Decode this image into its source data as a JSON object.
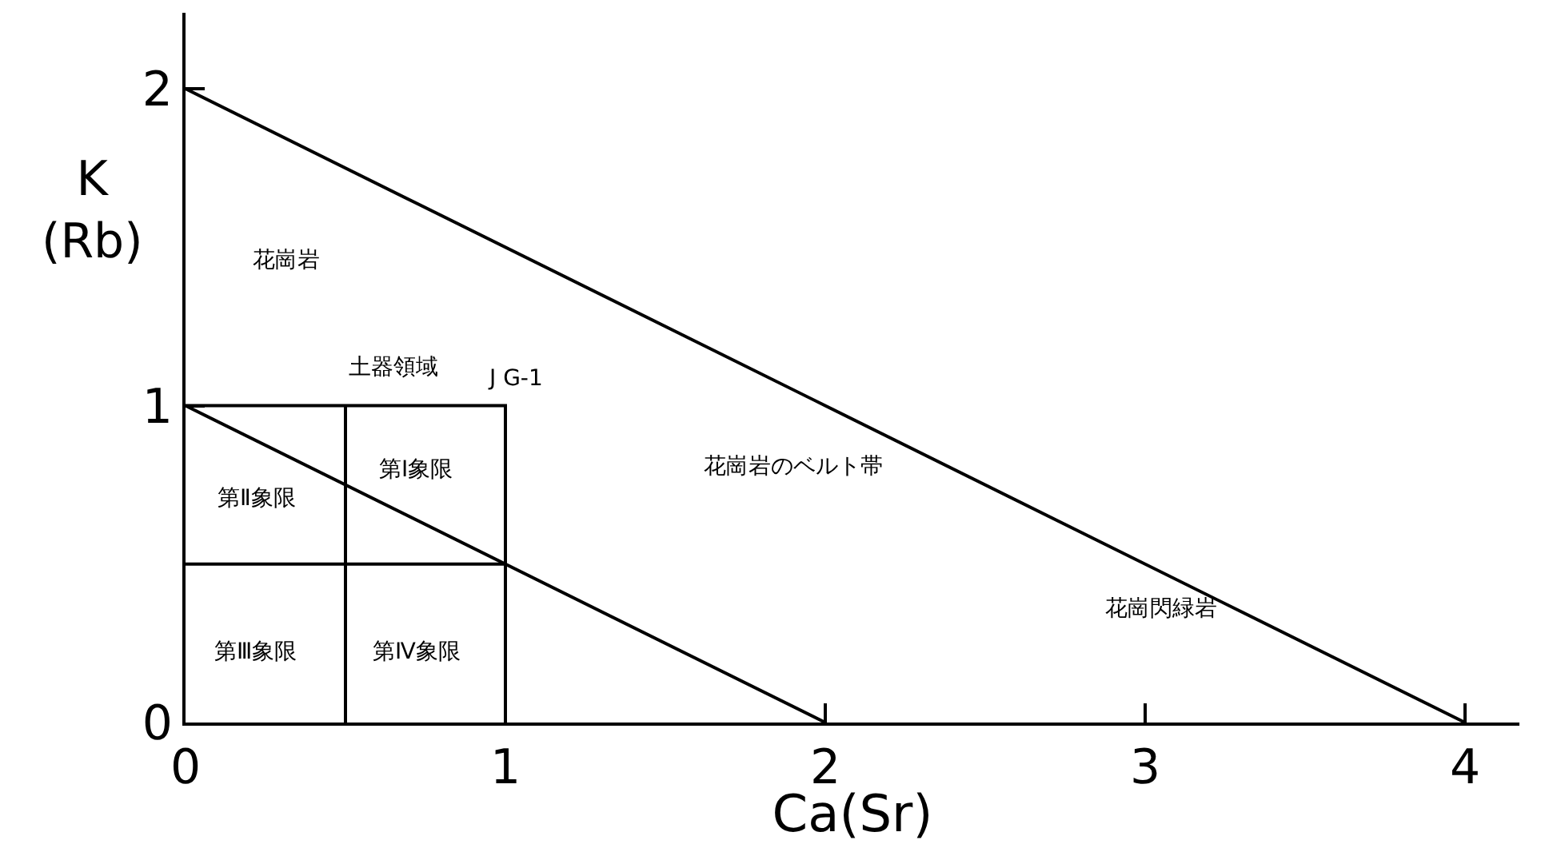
{
  "chart_data": {
    "type": "line",
    "xlabel": "Ca(Sr)",
    "ylabel": "K\n(Rb)",
    "xlim": [
      0,
      4.17
    ],
    "ylim": [
      0,
      2.24
    ],
    "xticks": [
      0,
      1,
      2,
      3,
      4
    ],
    "yticks": [
      0,
      1,
      2
    ],
    "marker": "none",
    "line_style": "solid",
    "series": [
      {
        "color": "#000000",
        "x": [
          0,
          4
        ],
        "values": [
          2,
          0
        ]
      },
      {
        "color": "#000000",
        "x": [
          0,
          2
        ],
        "values": [
          1,
          0
        ]
      },
      {
        "color": "#000000",
        "x": [
          0,
          1,
          1
        ],
        "values": [
          1,
          1,
          0
        ]
      },
      {
        "color": "#000000",
        "x": [
          0.5,
          0.5
        ],
        "values": [
          0,
          1
        ]
      },
      {
        "color": "#000000",
        "x": [
          0,
          1
        ],
        "values": [
          0.5,
          0.5
        ]
      }
    ],
    "annotations": [
      "花崗岩",
      "土器領域",
      "J G-1",
      "第Ⅰ象限",
      "第Ⅱ象限",
      "第Ⅲ象限",
      "第Ⅳ象限",
      "花崗岩のベルト帯",
      "花崗閃緑岩"
    ]
  }
}
